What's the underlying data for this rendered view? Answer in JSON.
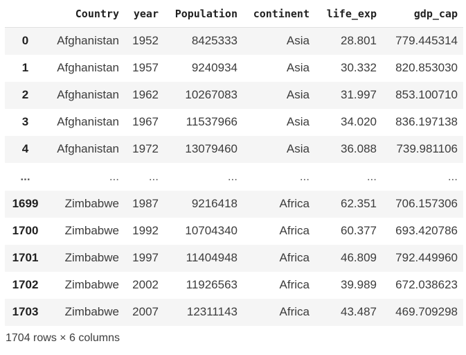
{
  "dataframe": {
    "columns": [
      "Country",
      "year",
      "Population",
      "continent",
      "life_exp",
      "gdp_cap"
    ],
    "rows": [
      {
        "index": "0",
        "cells": [
          "Afghanistan",
          "1952",
          "8425333",
          "Asia",
          "28.801",
          "779.445314"
        ]
      },
      {
        "index": "1",
        "cells": [
          "Afghanistan",
          "1957",
          "9240934",
          "Asia",
          "30.332",
          "820.853030"
        ]
      },
      {
        "index": "2",
        "cells": [
          "Afghanistan",
          "1962",
          "10267083",
          "Asia",
          "31.997",
          "853.100710"
        ]
      },
      {
        "index": "3",
        "cells": [
          "Afghanistan",
          "1967",
          "11537966",
          "Asia",
          "34.020",
          "836.197138"
        ]
      },
      {
        "index": "4",
        "cells": [
          "Afghanistan",
          "1972",
          "13079460",
          "Asia",
          "36.088",
          "739.981106"
        ]
      },
      {
        "index": "...",
        "cells": [
          "...",
          "...",
          "...",
          "...",
          "...",
          "..."
        ]
      },
      {
        "index": "1699",
        "cells": [
          "Zimbabwe",
          "1987",
          "9216418",
          "Africa",
          "62.351",
          "706.157306"
        ]
      },
      {
        "index": "1700",
        "cells": [
          "Zimbabwe",
          "1992",
          "10704340",
          "Africa",
          "60.377",
          "693.420786"
        ]
      },
      {
        "index": "1701",
        "cells": [
          "Zimbabwe",
          "1997",
          "11404948",
          "Africa",
          "46.809",
          "792.449960"
        ]
      },
      {
        "index": "1702",
        "cells": [
          "Zimbabwe",
          "2002",
          "11926563",
          "Africa",
          "39.989",
          "672.038623"
        ]
      },
      {
        "index": "1703",
        "cells": [
          "Zimbabwe",
          "2007",
          "12311143",
          "Africa",
          "43.487",
          "469.709298"
        ]
      }
    ],
    "shape_text": "1704 rows × 6 columns"
  }
}
